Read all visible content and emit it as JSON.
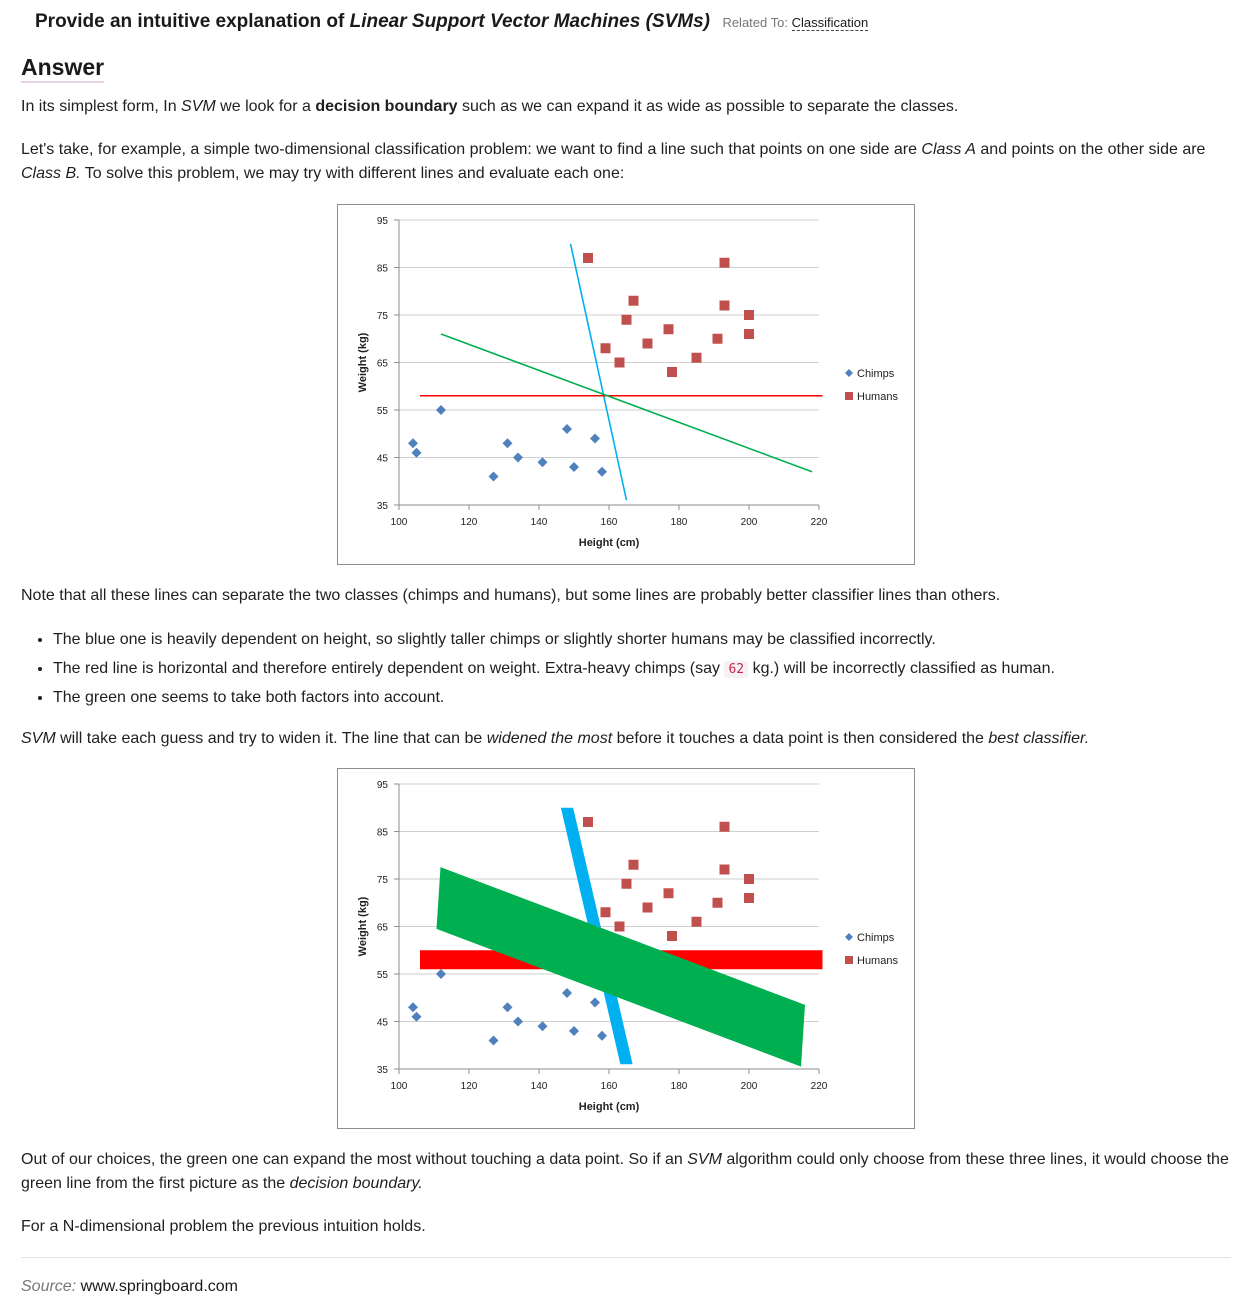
{
  "question": {
    "prefix": "Provide an intuitive explanation of ",
    "topic": "Linear Support Vector Machines (SVMs)",
    "related_label": "Related To:",
    "related_link": "Classification"
  },
  "answer_heading": "Answer",
  "paragraphs": {
    "p1": {
      "t1": "In its simplest form, In ",
      "svm": "SVM",
      "t2": " we look for a ",
      "bold": "decision boundary",
      "t3": " such as we can expand it as wide as possible to separate the classes."
    },
    "p2": {
      "t1": "Let's take, for example, a simple two-dimensional classification problem: we want to find a line such that points on one side are ",
      "class_a": "Class A",
      "t2": " and points on the other side are ",
      "class_b": "Class B.",
      "t3": " To solve this problem, we may try with different lines and evaluate each one:"
    },
    "p3": "Note that all these lines can separate the two classes (chimps and humans), but some lines are probably better classifier lines than others.",
    "p4": {
      "svm": "SVM",
      "t1": " will take each guess and try to widen it. The line that can be ",
      "em1": "widened the most",
      "t2": " before it touches a data point is then considered the ",
      "em2": "best classifier.",
      "t3": ""
    },
    "p5": {
      "t1": "Out of our choices, the green one can expand the most without touching a data point. So if an ",
      "svm": "SVM",
      "t2": " algorithm could only choose from these three lines, it would choose the green line from the first picture as the ",
      "em": "decision boundary.",
      "t3": ""
    },
    "p6": "For a N-dimensional problem the previous intuition holds."
  },
  "bullets": {
    "b1": "The blue one is heavily dependent on height, so slightly taller chimps or slightly shorter humans may be classified incorrectly.",
    "b2_pre": "The red line is horizontal and therefore entirely dependent on weight. Extra-heavy chimps (say ",
    "b2_code": "62",
    "b2_post": " kg.) will be incorrectly classified as human.",
    "b3": "The green one seems to take both factors into account."
  },
  "source": {
    "label": "Source:",
    "value": "www.springboard.com"
  },
  "colors": {
    "chimps": "#4f81bd",
    "humans": "#c0504d",
    "blue_line": "#00b0f0",
    "red_line": "#ff0000",
    "green_line": "#00b050"
  },
  "chart_data": [
    {
      "type": "scatter",
      "title": "",
      "xlabel": "Height (cm)",
      "ylabel": "Weight (kg)",
      "xlim": [
        100,
        220
      ],
      "ylim": [
        35,
        95
      ],
      "xticks": [
        100,
        120,
        140,
        160,
        180,
        200,
        220
      ],
      "yticks": [
        35,
        45,
        55,
        65,
        75,
        85,
        95
      ],
      "grid": "horizontal",
      "legend_position": "right",
      "series": [
        {
          "name": "Chimps",
          "marker": "diamond",
          "color": "#4f81bd",
          "points": [
            [
              104,
              48
            ],
            [
              105,
              46
            ],
            [
              112,
              55
            ],
            [
              127,
              41
            ],
            [
              131,
              48
            ],
            [
              134,
              45
            ],
            [
              141,
              44
            ],
            [
              148,
              51
            ],
            [
              150,
              43
            ],
            [
              156,
              49
            ],
            [
              158,
              42
            ]
          ]
        },
        {
          "name": "Humans",
          "marker": "square",
          "color": "#c0504d",
          "points": [
            [
              154,
              87
            ],
            [
              159,
              68
            ],
            [
              163,
              65
            ],
            [
              165,
              74
            ],
            [
              167,
              78
            ],
            [
              171,
              69
            ],
            [
              177,
              72
            ],
            [
              178,
              63
            ],
            [
              185,
              66
            ],
            [
              191,
              70
            ],
            [
              193,
              86
            ],
            [
              193,
              77
            ],
            [
              200,
              75
            ],
            [
              200,
              71
            ]
          ]
        }
      ],
      "lines": [
        {
          "color": "#00b0f0",
          "from": [
            149,
            90
          ],
          "to": [
            165,
            36
          ],
          "width": "thin"
        },
        {
          "color": "#ff0000",
          "from": [
            106,
            58
          ],
          "to": [
            221,
            58
          ],
          "width": "thin"
        },
        {
          "color": "#00b050",
          "from": [
            112,
            71
          ],
          "to": [
            218,
            42
          ],
          "width": "thin"
        }
      ]
    },
    {
      "type": "scatter",
      "title": "",
      "xlabel": "Height (cm)",
      "ylabel": "Weight (kg)",
      "xlim": [
        100,
        220
      ],
      "ylim": [
        35,
        95
      ],
      "xticks": [
        100,
        120,
        140,
        160,
        180,
        200,
        220
      ],
      "yticks": [
        35,
        45,
        55,
        65,
        75,
        85,
        95
      ],
      "grid": "horizontal",
      "legend_position": "right",
      "series": [
        {
          "name": "Chimps",
          "marker": "diamond",
          "color": "#4f81bd",
          "points": [
            [
              104,
              48
            ],
            [
              105,
              46
            ],
            [
              112,
              55
            ],
            [
              127,
              41
            ],
            [
              131,
              48
            ],
            [
              134,
              45
            ],
            [
              141,
              44
            ],
            [
              148,
              51
            ],
            [
              150,
              43
            ],
            [
              156,
              49
            ],
            [
              158,
              42
            ]
          ]
        },
        {
          "name": "Humans",
          "marker": "square",
          "color": "#c0504d",
          "points": [
            [
              154,
              87
            ],
            [
              159,
              68
            ],
            [
              163,
              65
            ],
            [
              165,
              74
            ],
            [
              167,
              78
            ],
            [
              171,
              69
            ],
            [
              177,
              72
            ],
            [
              178,
              63
            ],
            [
              185,
              66
            ],
            [
              191,
              70
            ],
            [
              193,
              86
            ],
            [
              193,
              77
            ],
            [
              200,
              75
            ],
            [
              200,
              71
            ]
          ]
        }
      ],
      "bands": [
        {
          "color": "#ff0000",
          "y_range": [
            56,
            60
          ],
          "x_range": [
            106,
            221
          ]
        },
        {
          "color": "#00b0f0",
          "from": [
            148,
            90
          ],
          "to": [
            165,
            36
          ],
          "width_cm": 3.5
        },
        {
          "color": "#00b050",
          "from": [
            113,
            71
          ],
          "to": [
            216,
            42
          ],
          "width_kg": 13
        }
      ]
    }
  ]
}
